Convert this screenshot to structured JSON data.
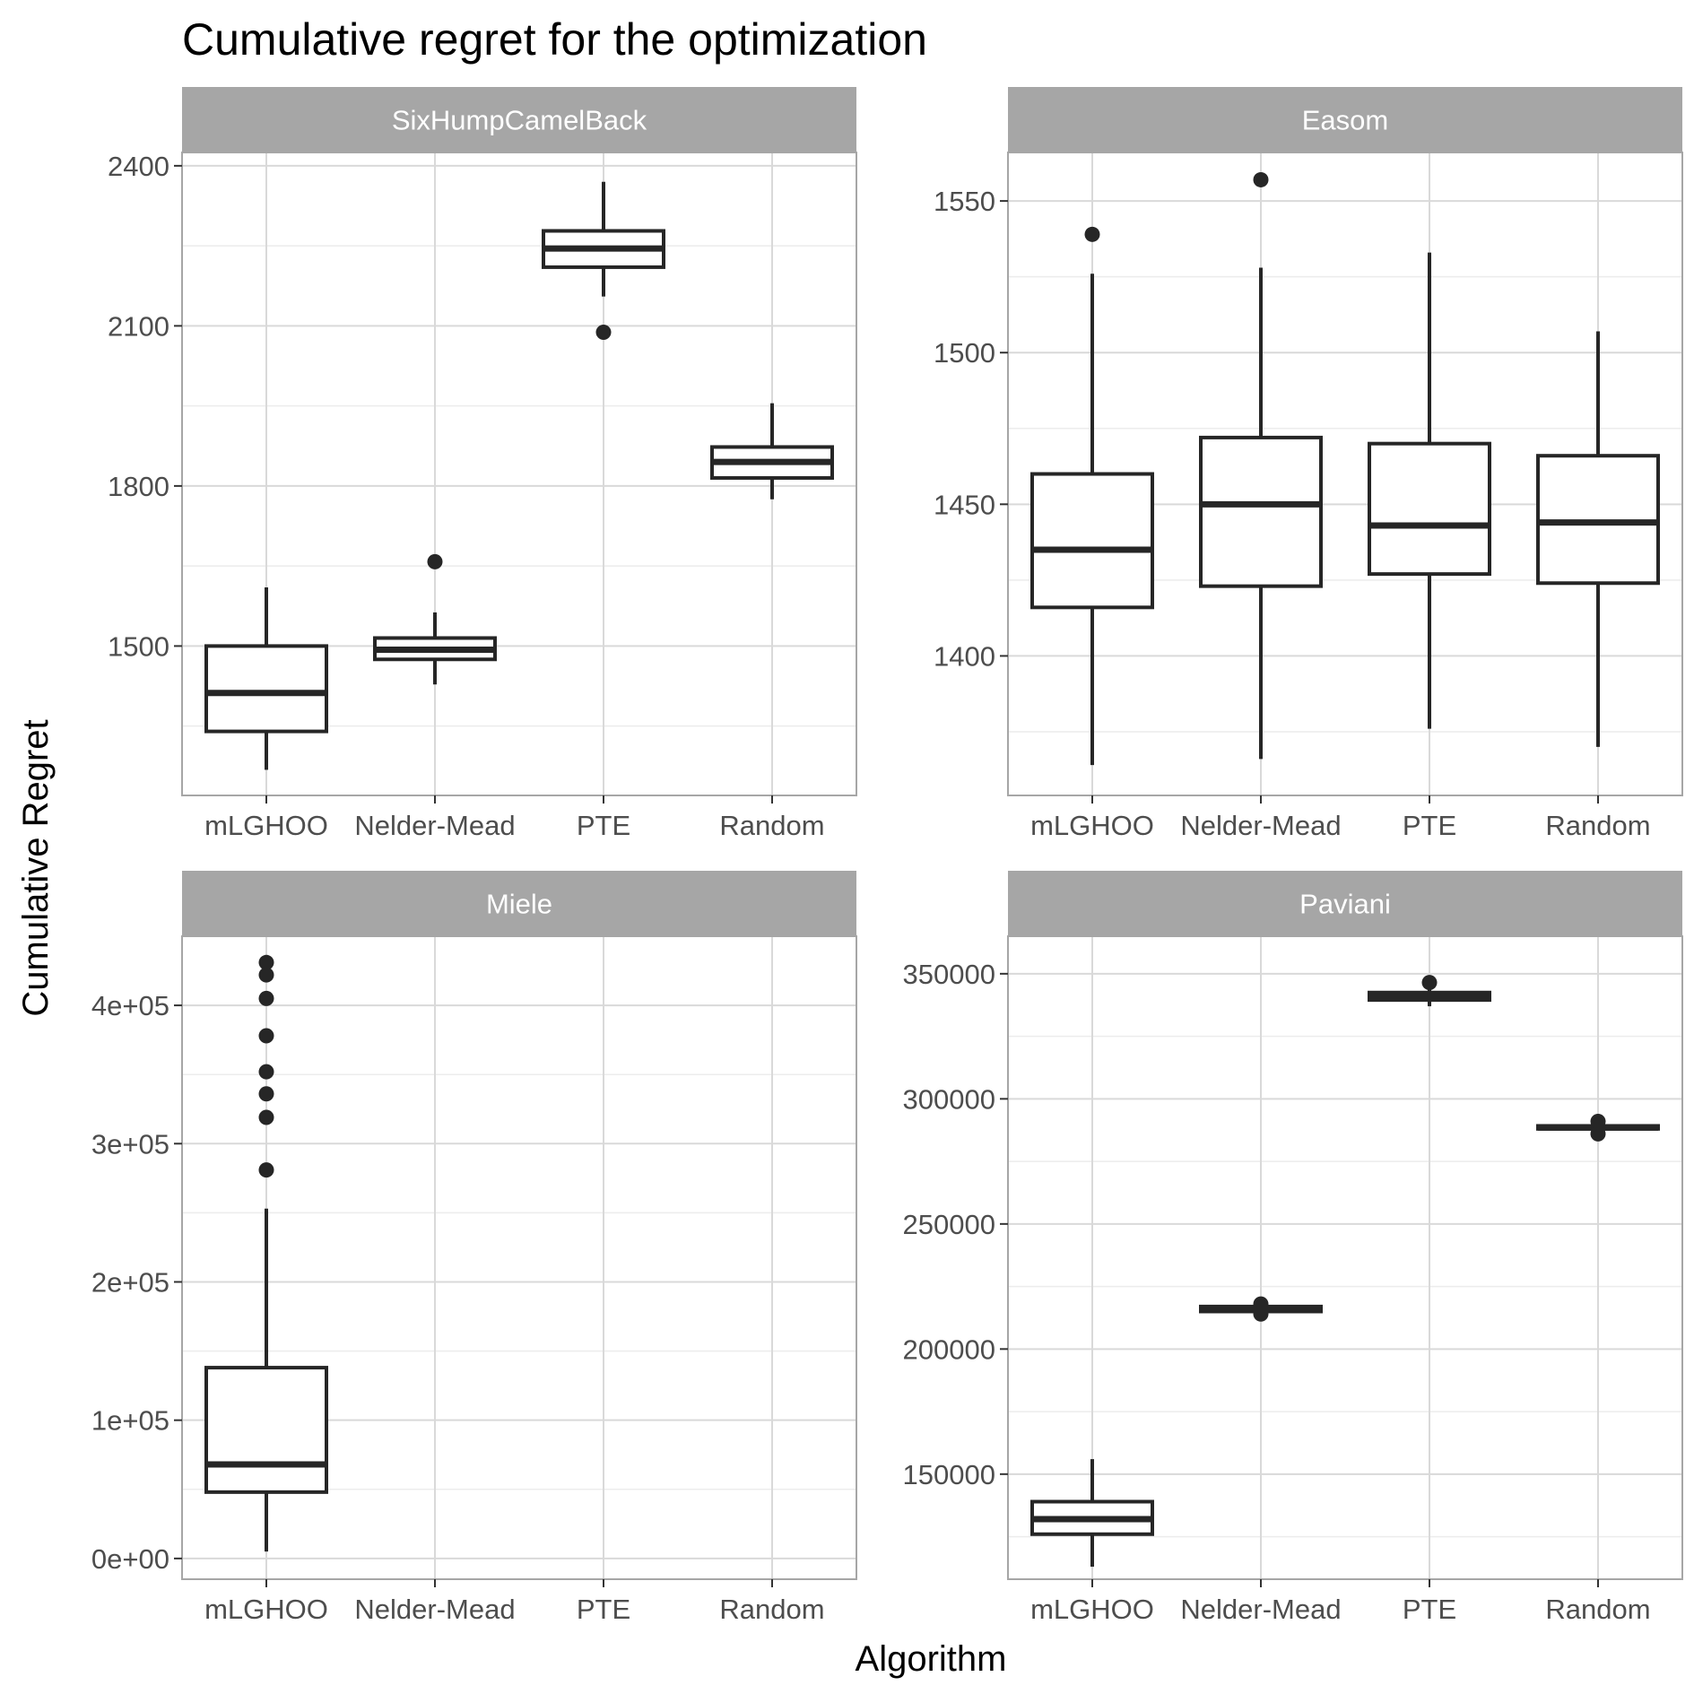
{
  "chart_data": {
    "type": "boxplot",
    "title": "Cumulative regret for the optimization",
    "xlabel": "Algorithm",
    "ylabel": "Cumulative Regret",
    "categories": [
      "mLGHOO",
      "Nelder-Mead",
      "PTE",
      "Random"
    ],
    "grid": true,
    "colors": {
      "panel_background": "#ffffff",
      "strip_background": "#a6a6a6",
      "grid_major": "#d9d9d9",
      "grid_minor": "#ececec",
      "panel_border": "#a6a6a6",
      "box_stroke": "#262626",
      "tick_label": "#4d4d4d"
    },
    "panels": [
      {
        "name": "SixHumpCamelBack",
        "ylim": [
          1220,
          2425
        ],
        "yticks": [
          1500,
          1800,
          2100,
          2400
        ],
        "ytick_labels": [
          "1500",
          "1800",
          "2100",
          "2400"
        ],
        "boxes": [
          {
            "category": "mLGHOO",
            "q1": 1340,
            "median": 1412,
            "q3": 1500,
            "whisker_low": 1268,
            "whisker_high": 1610,
            "outliers": []
          },
          {
            "category": "Nelder-Mead",
            "q1": 1475,
            "median": 1493,
            "q3": 1515,
            "whisker_low": 1428,
            "whisker_high": 1563,
            "outliers": [
              1658
            ]
          },
          {
            "category": "PTE",
            "q1": 2210,
            "median": 2245,
            "q3": 2278,
            "whisker_low": 2155,
            "whisker_high": 2370,
            "outliers": [
              2088
            ]
          },
          {
            "category": "Random",
            "q1": 1815,
            "median": 1845,
            "q3": 1873,
            "whisker_low": 1775,
            "whisker_high": 1955,
            "outliers": []
          }
        ]
      },
      {
        "name": "Easom",
        "ylim": [
          1354,
          1566
        ],
        "yticks": [
          1400,
          1450,
          1500,
          1550
        ],
        "ytick_labels": [
          "1400",
          "1450",
          "1500",
          "1550"
        ],
        "boxes": [
          {
            "category": "mLGHOO",
            "q1": 1416,
            "median": 1435,
            "q3": 1460,
            "whisker_low": 1364,
            "whisker_high": 1526,
            "outliers": [
              1539
            ]
          },
          {
            "category": "Nelder-Mead",
            "q1": 1423,
            "median": 1450,
            "q3": 1472,
            "whisker_low": 1366,
            "whisker_high": 1528,
            "outliers": [
              1557
            ]
          },
          {
            "category": "PTE",
            "q1": 1427,
            "median": 1443,
            "q3": 1470,
            "whisker_low": 1376,
            "whisker_high": 1533,
            "outliers": []
          },
          {
            "category": "Random",
            "q1": 1424,
            "median": 1444,
            "q3": 1466,
            "whisker_low": 1370,
            "whisker_high": 1507,
            "outliers": []
          }
        ]
      },
      {
        "name": "Miele",
        "ylim": [
          -15000,
          450000
        ],
        "yticks": [
          0,
          100000,
          200000,
          300000,
          400000
        ],
        "ytick_labels": [
          "0e+00",
          "1e+05",
          "2e+05",
          "3e+05",
          "4e+05"
        ],
        "boxes": [
          {
            "category": "mLGHOO",
            "q1": 48000,
            "median": 68000,
            "q3": 138000,
            "whisker_low": 5000,
            "whisker_high": 253000,
            "outliers": [
              281000,
              319000,
              336000,
              352000,
              378000,
              405000,
              422000,
              431000
            ]
          }
        ]
      },
      {
        "name": "Paviani",
        "ylim": [
          108000,
          365000
        ],
        "yticks": [
          150000,
          200000,
          250000,
          300000,
          350000
        ],
        "ytick_labels": [
          "150000",
          "200000",
          "250000",
          "300000",
          "350000"
        ],
        "boxes": [
          {
            "category": "mLGHOO",
            "q1": 126000,
            "median": 132000,
            "q3": 139000,
            "whisker_low": 113000,
            "whisker_high": 156000,
            "outliers": []
          },
          {
            "category": "Nelder-Mead",
            "q1": 215000,
            "median": 216000,
            "q3": 217000,
            "whisker_low": 214500,
            "whisker_high": 217500,
            "outliers": [
              214000,
              218000
            ]
          },
          {
            "category": "PTE",
            "q1": 339500,
            "median": 341000,
            "q3": 342500,
            "whisker_low": 337000,
            "whisker_high": 344000,
            "outliers": [
              346500
            ]
          },
          {
            "category": "Random",
            "q1": 288000,
            "median": 288500,
            "q3": 289200,
            "whisker_low": 287500,
            "whisker_high": 289600,
            "outliers": [
              286000,
              291000
            ]
          }
        ]
      }
    ]
  }
}
